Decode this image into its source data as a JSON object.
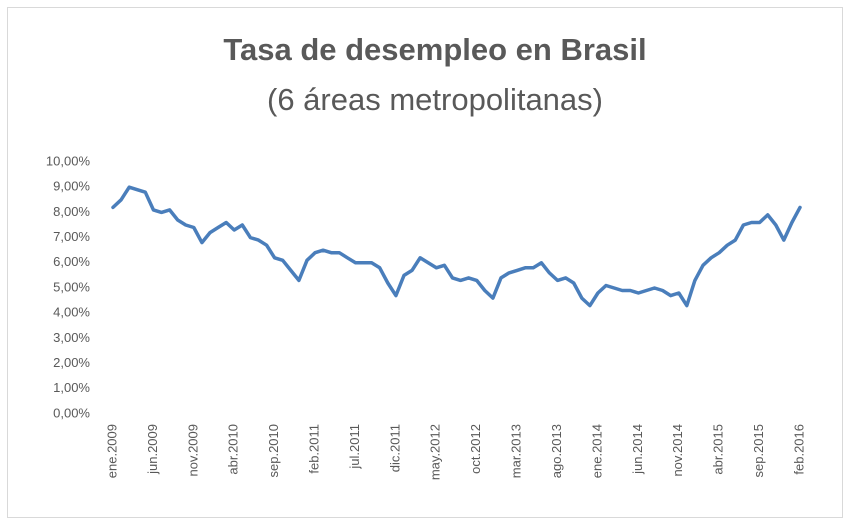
{
  "chart_data": {
    "type": "line",
    "title": "Tasa de desempleo en Brasil",
    "subtitle": "(6 áreas metropolitanas)",
    "categories": [
      "ene.2009",
      null,
      null,
      null,
      null,
      "jun.2009",
      null,
      null,
      null,
      null,
      "nov.2009",
      null,
      null,
      null,
      null,
      "abr.2010",
      null,
      null,
      null,
      null,
      "sep.2010",
      null,
      null,
      null,
      null,
      "feb.2011",
      null,
      null,
      null,
      null,
      "jul.2011",
      null,
      null,
      null,
      null,
      "dic.2011",
      null,
      null,
      null,
      null,
      "may.2012",
      null,
      null,
      null,
      null,
      "oct.2012",
      null,
      null,
      null,
      null,
      "mar.2013",
      null,
      null,
      null,
      null,
      "ago.2013",
      null,
      null,
      null,
      null,
      "ene.2014",
      null,
      null,
      null,
      null,
      "jun.2014",
      null,
      null,
      null,
      null,
      "nov.2014",
      null,
      null,
      null,
      null,
      "abr.2015",
      null,
      null,
      null,
      null,
      "sep.2015",
      null,
      null,
      null,
      null,
      "feb.2016"
    ],
    "values": [
      8.2,
      8.5,
      9.0,
      8.9,
      8.8,
      8.1,
      8.0,
      8.1,
      7.7,
      7.5,
      7.4,
      6.8,
      7.2,
      7.4,
      7.6,
      7.3,
      7.5,
      7.0,
      6.9,
      6.7,
      6.2,
      6.1,
      5.7,
      5.3,
      6.1,
      6.4,
      6.5,
      6.4,
      6.4,
      6.2,
      6.0,
      6.0,
      6.0,
      5.8,
      5.2,
      4.7,
      5.5,
      5.7,
      6.2,
      6.0,
      5.8,
      5.9,
      5.4,
      5.3,
      5.4,
      5.3,
      4.9,
      4.6,
      5.4,
      5.6,
      5.7,
      5.8,
      5.8,
      6.0,
      5.6,
      5.3,
      5.4,
      5.2,
      4.6,
      4.3,
      4.8,
      5.1,
      5.0,
      4.9,
      4.9,
      4.8,
      4.9,
      5.0,
      4.9,
      4.7,
      4.8,
      4.3,
      5.3,
      5.9,
      6.2,
      6.4,
      6.7,
      6.9,
      7.5,
      7.6,
      7.6,
      7.9,
      7.5,
      6.9,
      7.6,
      8.2
    ],
    "color": "#4a7ebb",
    "ylim": [
      0,
      10
    ],
    "yticks": [
      {
        "value": 0,
        "label": "0,00%"
      },
      {
        "value": 1,
        "label": "1,00%"
      },
      {
        "value": 2,
        "label": "2,00%"
      },
      {
        "value": 3,
        "label": "3,00%"
      },
      {
        "value": 4,
        "label": "4,00%"
      },
      {
        "value": 5,
        "label": "5,00%"
      },
      {
        "value": 6,
        "label": "6,00%"
      },
      {
        "value": 7,
        "label": "7,00%"
      },
      {
        "value": 8,
        "label": "8,00%"
      },
      {
        "value": 9,
        "label": "9,00%"
      },
      {
        "value": 10,
        "label": "10,00%"
      }
    ],
    "grid": false
  }
}
